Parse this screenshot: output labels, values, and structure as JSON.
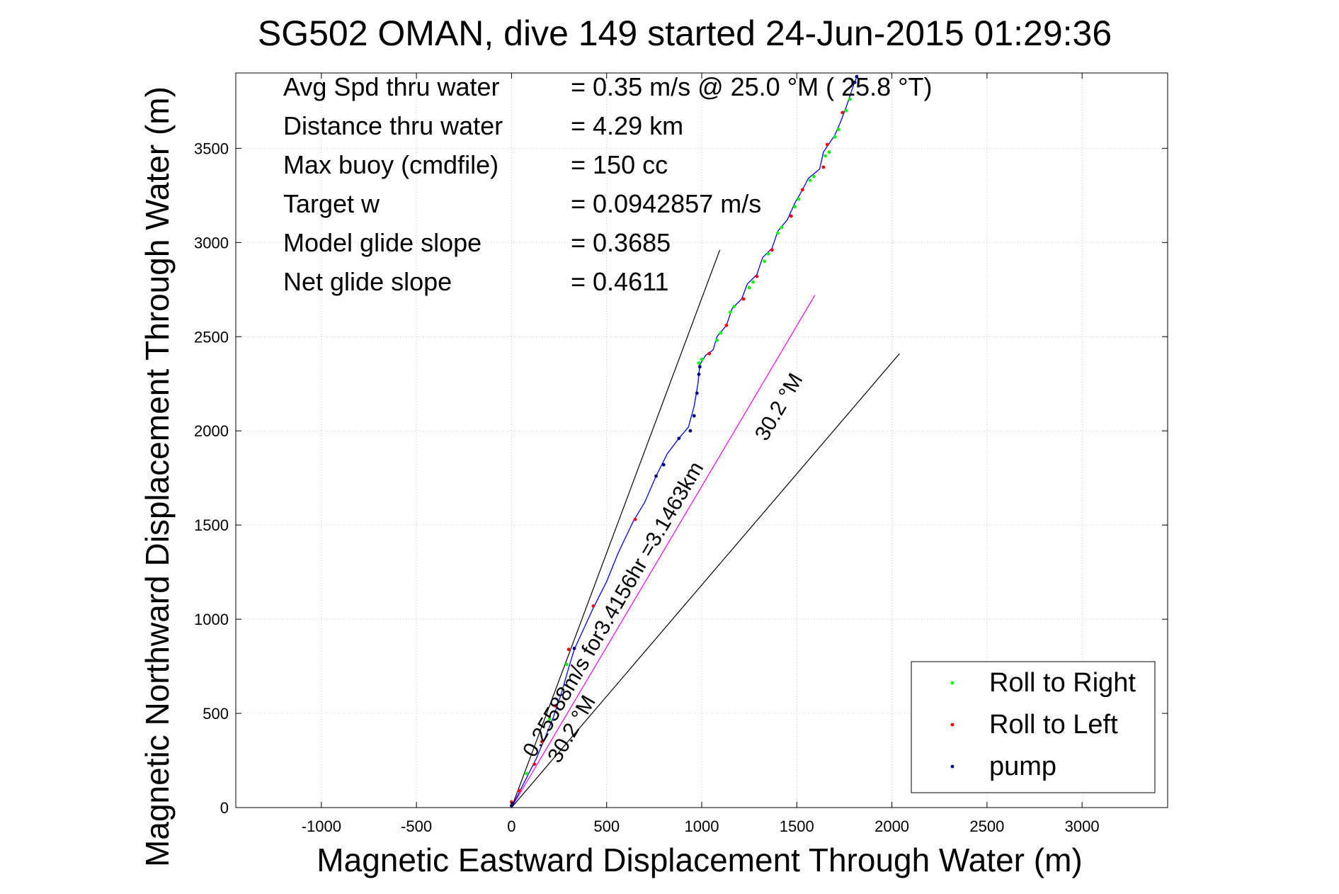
{
  "chart_data": {
    "type": "scatter",
    "title": "SG502 OMAN, dive 149 started 24-Jun-2015 01:29:36",
    "xlabel": "Magnetic Eastward Displacement Through Water (m)",
    "ylabel": "Magnetic Northward Displacement Through Water (m)",
    "xlim": [
      -1450,
      3450
    ],
    "ylim": [
      0,
      3900
    ],
    "xticks": [
      -1000,
      -500,
      0,
      500,
      1000,
      1500,
      2000,
      2500,
      3000
    ],
    "yticks": [
      0,
      500,
      1000,
      1500,
      2000,
      2500,
      3000,
      3500
    ],
    "grid": true,
    "legend_position": "bottom-right",
    "stats": [
      {
        "label": "Avg Spd thru water",
        "value": "=  0.35 m/s @  25.0 °M ( 25.8 °T)"
      },
      {
        "label": "Distance thru water",
        "value": "=  4.29 km"
      },
      {
        "label": "Max buoy (cmdfile)",
        "value": "= 150 cc"
      },
      {
        "label": "Target w",
        "value": "= 0.0942857 m/s"
      },
      {
        "label": "Model glide slope",
        "value": "= 0.3685"
      },
      {
        "label": "Net glide slope",
        "value": "= 0.4611"
      }
    ],
    "annotations": [
      {
        "text": "0.25588m/s for3.4156hr =3.1463km",
        "x": 120,
        "y": 260,
        "angle_deg": 59.8
      },
      {
        "text": "30.2 °M",
        "x": 250,
        "y": 230,
        "angle_deg": 59.8
      },
      {
        "text": "30.2 °M",
        "x": 1340,
        "y": 1940,
        "angle_deg": 59.8
      }
    ],
    "reference_lines": [
      {
        "name": "upper cone",
        "color": "#000000",
        "points": [
          [
            0,
            0
          ],
          [
            1095,
            2960
          ]
        ]
      },
      {
        "name": "lower cone",
        "color": "#000000",
        "points": [
          [
            0,
            0
          ],
          [
            2040,
            2410
          ]
        ]
      },
      {
        "name": "net displacement",
        "color": "#ff00ff",
        "points": [
          [
            0,
            0
          ],
          [
            1595,
            2720
          ]
        ]
      }
    ],
    "track": {
      "name": "track",
      "color": "#0000ff",
      "points": [
        [
          0,
          0
        ],
        [
          40,
          80
        ],
        [
          80,
          160
        ],
        [
          130,
          260
        ],
        [
          180,
          380
        ],
        [
          220,
          480
        ],
        [
          260,
          600
        ],
        [
          300,
          740
        ],
        [
          330,
          840
        ],
        [
          380,
          950
        ],
        [
          430,
          1060
        ],
        [
          500,
          1200
        ],
        [
          560,
          1350
        ],
        [
          640,
          1520
        ],
        [
          700,
          1620
        ],
        [
          760,
          1760
        ],
        [
          820,
          1880
        ],
        [
          880,
          1960
        ],
        [
          930,
          2020
        ],
        [
          960,
          2130
        ],
        [
          980,
          2250
        ],
        [
          990,
          2350
        ],
        [
          1020,
          2400
        ],
        [
          1060,
          2430
        ],
        [
          1080,
          2500
        ],
        [
          1130,
          2560
        ],
        [
          1160,
          2650
        ],
        [
          1210,
          2700
        ],
        [
          1240,
          2780
        ],
        [
          1290,
          2830
        ],
        [
          1320,
          2920
        ],
        [
          1370,
          2970
        ],
        [
          1400,
          3060
        ],
        [
          1450,
          3120
        ],
        [
          1490,
          3210
        ],
        [
          1530,
          3280
        ],
        [
          1560,
          3340
        ],
        [
          1620,
          3390
        ],
        [
          1640,
          3480
        ],
        [
          1700,
          3570
        ],
        [
          1730,
          3640
        ],
        [
          1760,
          3720
        ],
        [
          1800,
          3840
        ],
        [
          1820,
          3890
        ]
      ]
    },
    "series": [
      {
        "name": "Roll to Right",
        "color": "#00ff00",
        "points": [
          [
            80,
            180
          ],
          [
            200,
            470
          ],
          [
            290,
            760
          ],
          [
            985,
            2360
          ],
          [
            1000,
            2380
          ],
          [
            1080,
            2480
          ],
          [
            1100,
            2520
          ],
          [
            1150,
            2630
          ],
          [
            1170,
            2660
          ],
          [
            1250,
            2760
          ],
          [
            1270,
            2790
          ],
          [
            1330,
            2900
          ],
          [
            1350,
            2940
          ],
          [
            1400,
            3050
          ],
          [
            1420,
            3080
          ],
          [
            1490,
            3190
          ],
          [
            1510,
            3230
          ],
          [
            1570,
            3330
          ],
          [
            1590,
            3350
          ],
          [
            1650,
            3460
          ],
          [
            1670,
            3480
          ],
          [
            1700,
            3560
          ],
          [
            1720,
            3600
          ],
          [
            1760,
            3700
          ],
          [
            1780,
            3760
          ]
        ]
      },
      {
        "name": "Roll to Left",
        "color": "#ff0000",
        "points": [
          [
            0,
            30
          ],
          [
            40,
            90
          ],
          [
            120,
            230
          ],
          [
            160,
            350
          ],
          [
            230,
            540
          ],
          [
            300,
            840
          ],
          [
            430,
            1070
          ],
          [
            650,
            1530
          ],
          [
            1040,
            2410
          ],
          [
            1130,
            2560
          ],
          [
            1220,
            2700
          ],
          [
            1290,
            2820
          ],
          [
            1370,
            2960
          ],
          [
            1470,
            3140
          ],
          [
            1530,
            3280
          ],
          [
            1640,
            3400
          ],
          [
            1660,
            3520
          ],
          [
            1740,
            3690
          ]
        ]
      },
      {
        "name": "pump",
        "color": "#000080",
        "points": [
          [
            0,
            10
          ],
          [
            5,
            20
          ],
          [
            330,
            845
          ],
          [
            760,
            1760
          ],
          [
            800,
            1820
          ],
          [
            960,
            2080
          ],
          [
            975,
            2200
          ],
          [
            985,
            2300
          ],
          [
            990,
            2340
          ],
          [
            940,
            2000
          ],
          [
            880,
            1960
          ],
          [
            1805,
            3850
          ],
          [
            1815,
            3880
          ]
        ]
      }
    ]
  }
}
